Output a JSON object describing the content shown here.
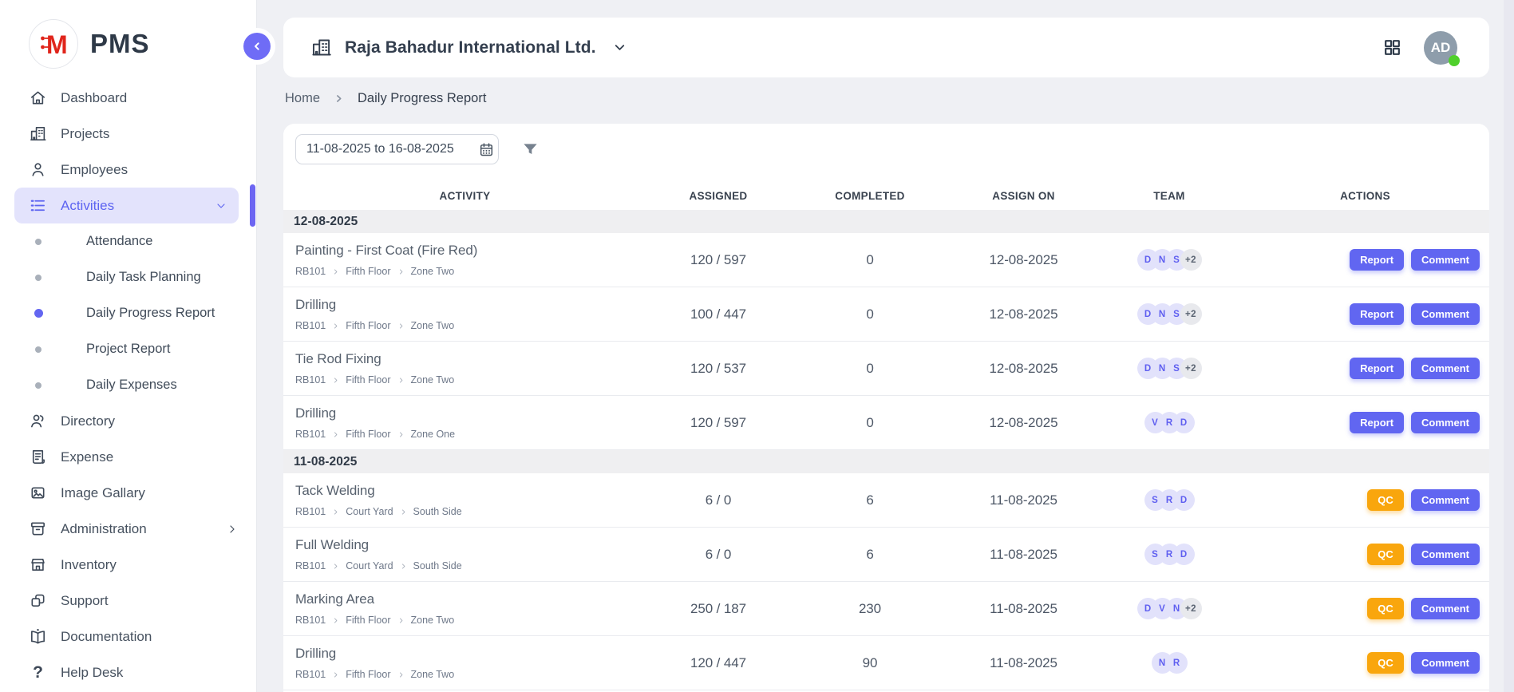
{
  "app": {
    "name": "PMS",
    "logo_letter": "M"
  },
  "sidebar": {
    "items": [
      {
        "label": "Dashboard",
        "icon": "home",
        "type": "item"
      },
      {
        "label": "Projects",
        "icon": "building",
        "type": "item"
      },
      {
        "label": "Employees",
        "icon": "person",
        "type": "item"
      },
      {
        "label": "Activities",
        "icon": "list",
        "type": "item",
        "active": true,
        "chevron": "down"
      },
      {
        "label": "Attendance",
        "type": "sub"
      },
      {
        "label": "Daily Task Planning",
        "type": "sub"
      },
      {
        "label": "Daily Progress Report",
        "type": "sub",
        "active": true
      },
      {
        "label": "Project Report",
        "type": "sub"
      },
      {
        "label": "Daily Expenses",
        "type": "sub"
      },
      {
        "label": "Directory",
        "icon": "people",
        "type": "item"
      },
      {
        "label": "Expense",
        "icon": "receipt",
        "type": "item"
      },
      {
        "label": "Image Gallary",
        "icon": "image",
        "type": "item"
      },
      {
        "label": "Administration",
        "icon": "archive",
        "type": "item",
        "chevron": "right"
      },
      {
        "label": "Inventory",
        "icon": "store",
        "type": "item"
      },
      {
        "label": "Support",
        "icon": "squares",
        "type": "item"
      },
      {
        "label": "Documentation",
        "icon": "book",
        "type": "item"
      },
      {
        "label": "Help Desk",
        "icon": "question",
        "type": "item"
      }
    ]
  },
  "header": {
    "company": "Raja Bahadur International Ltd.",
    "avatar_initials": "AD"
  },
  "breadcrumb": {
    "items": [
      "Home",
      "Daily Progress Report"
    ]
  },
  "filters": {
    "date_range": "11-08-2025 to 16-08-2025"
  },
  "table": {
    "columns": [
      "Activity",
      "Assigned",
      "Completed",
      "Assign On",
      "Team",
      "Actions"
    ],
    "groups": [
      {
        "date": "12-08-2025",
        "rows": [
          {
            "title": "Painting - First Coat (Fire Red)",
            "location": [
              "RB101",
              "Fifth Floor",
              "Zone Two"
            ],
            "assigned": "120 / 597",
            "completed": "0",
            "assign_on": "12-08-2025",
            "team": [
              "D",
              "N",
              "S",
              "+2"
            ],
            "actions": [
              {
                "label": "Report",
                "style": "primary"
              },
              {
                "label": "Comment",
                "style": "primary"
              }
            ]
          },
          {
            "title": "Drilling",
            "location": [
              "RB101",
              "Fifth Floor",
              "Zone Two"
            ],
            "assigned": "100 / 447",
            "completed": "0",
            "assign_on": "12-08-2025",
            "team": [
              "D",
              "N",
              "S",
              "+2"
            ],
            "actions": [
              {
                "label": "Report",
                "style": "primary"
              },
              {
                "label": "Comment",
                "style": "primary"
              }
            ]
          },
          {
            "title": "Tie Rod Fixing",
            "location": [
              "RB101",
              "Fifth Floor",
              "Zone Two"
            ],
            "assigned": "120 / 537",
            "completed": "0",
            "assign_on": "12-08-2025",
            "team": [
              "D",
              "N",
              "S",
              "+2"
            ],
            "actions": [
              {
                "label": "Report",
                "style": "primary"
              },
              {
                "label": "Comment",
                "style": "primary"
              }
            ]
          },
          {
            "title": "Drilling",
            "location": [
              "RB101",
              "Fifth Floor",
              "Zone One"
            ],
            "assigned": "120 / 597",
            "completed": "0",
            "assign_on": "12-08-2025",
            "team": [
              "V",
              "R",
              "D"
            ],
            "actions": [
              {
                "label": "Report",
                "style": "primary"
              },
              {
                "label": "Comment",
                "style": "primary"
              }
            ]
          }
        ]
      },
      {
        "date": "11-08-2025",
        "rows": [
          {
            "title": "Tack Welding",
            "location": [
              "RB101",
              "Court Yard",
              "South Side"
            ],
            "assigned": "6 / 0",
            "completed": "6",
            "assign_on": "11-08-2025",
            "team": [
              "S",
              "R",
              "D"
            ],
            "actions": [
              {
                "label": "QC",
                "style": "warning"
              },
              {
                "label": "Comment",
                "style": "primary"
              }
            ]
          },
          {
            "title": "Full Welding",
            "location": [
              "RB101",
              "Court Yard",
              "South Side"
            ],
            "assigned": "6 / 0",
            "completed": "6",
            "assign_on": "11-08-2025",
            "team": [
              "S",
              "R",
              "D"
            ],
            "actions": [
              {
                "label": "QC",
                "style": "warning"
              },
              {
                "label": "Comment",
                "style": "primary"
              }
            ]
          },
          {
            "title": "Marking Area",
            "location": [
              "RB101",
              "Fifth Floor",
              "Zone Two"
            ],
            "assigned": "250 / 187",
            "completed": "230",
            "assign_on": "11-08-2025",
            "team": [
              "D",
              "V",
              "N",
              "+2"
            ],
            "actions": [
              {
                "label": "QC",
                "style": "warning"
              },
              {
                "label": "Comment",
                "style": "primary"
              }
            ]
          },
          {
            "title": "Drilling",
            "location": [
              "RB101",
              "Fifth Floor",
              "Zone Two"
            ],
            "assigned": "120 / 447",
            "completed": "90",
            "assign_on": "11-08-2025",
            "team": [
              "N",
              "R"
            ],
            "actions": [
              {
                "label": "QC",
                "style": "warning"
              },
              {
                "label": "Comment",
                "style": "primary"
              }
            ]
          }
        ]
      }
    ]
  },
  "colors": {
    "accent": "#6366f1",
    "warning": "#f9a60d",
    "online": "#4fd02b",
    "badge_bg": "#e2e2fb",
    "badge_more_bg": "#e8e9ed"
  }
}
